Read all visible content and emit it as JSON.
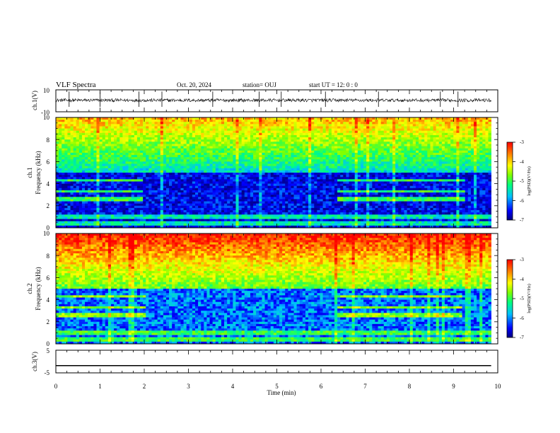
{
  "header": {
    "title": "VLF Spectra",
    "date": "Oct. 20, 2024",
    "station": "station= OUJ",
    "start_ut": "start  UT =   12: 0  : 0"
  },
  "colors": {
    "colormap": [
      "#00007f",
      "#0000ff",
      "#00bfff",
      "#00ff7f",
      "#7fff00",
      "#ffff00",
      "#ff7f00",
      "#ff0000"
    ],
    "line": "#000000"
  },
  "chart_data": [
    {
      "type": "line",
      "name": "ch1-waveform",
      "ylabel": "ch.1(V)",
      "ylim": [
        -10,
        10
      ],
      "yticks": [
        "10",
        "-10"
      ],
      "xlim": [
        0,
        10
      ],
      "baseline": 0.5,
      "noise_amplitude": 1.5
    },
    {
      "type": "heatmap",
      "name": "ch1-spectrogram",
      "ylabel_line1": "ch.1",
      "ylabel_line2": "Frequency (kHz)",
      "ylim": [
        0,
        10
      ],
      "yticks": [
        "0",
        "2",
        "4",
        "6",
        "8",
        "10"
      ],
      "xlim": [
        0,
        10
      ],
      "colorbar": {
        "label": "log(PSD)(V²/Hz)",
        "range": [
          -7,
          -3
        ],
        "ticks": [
          "-3",
          "-4",
          "-5",
          "-6",
          "-7"
        ]
      },
      "segment_boundaries_min": [
        2.0,
        6.35,
        9.25
      ],
      "low_activity_ceiling_khz": 5.0
    },
    {
      "type": "heatmap",
      "name": "ch2-spectrogram",
      "ylabel_line1": "ch.2",
      "ylabel_line2": "Frequency (kHz)",
      "ylim": [
        0,
        10
      ],
      "yticks": [
        "0",
        "2",
        "4",
        "6",
        "8",
        "10"
      ],
      "xlim": [
        0,
        10
      ],
      "colorbar": {
        "label": "log(PSD)(V²/Hz)",
        "range": [
          -7,
          -3
        ],
        "ticks": [
          "-3",
          "-4",
          "-5",
          "-6",
          "-7"
        ]
      },
      "segment_boundaries_min": [
        2.05,
        6.35,
        9.2
      ],
      "low_activity_ceiling_khz": 5.0
    },
    {
      "type": "line",
      "name": "ch3-waveform",
      "ylabel": "ch.3(V)",
      "ylim": [
        -5,
        5
      ],
      "yticks": [
        "5",
        "-5"
      ],
      "xlim": [
        0,
        10
      ],
      "xlabel": "Time (min)",
      "xticks": [
        "0",
        "1",
        "2",
        "3",
        "4",
        "5",
        "6",
        "7",
        "8",
        "9",
        "10"
      ],
      "values": [
        [
          0,
          -1.8
        ],
        [
          9.85,
          -1.8
        ]
      ]
    }
  ]
}
